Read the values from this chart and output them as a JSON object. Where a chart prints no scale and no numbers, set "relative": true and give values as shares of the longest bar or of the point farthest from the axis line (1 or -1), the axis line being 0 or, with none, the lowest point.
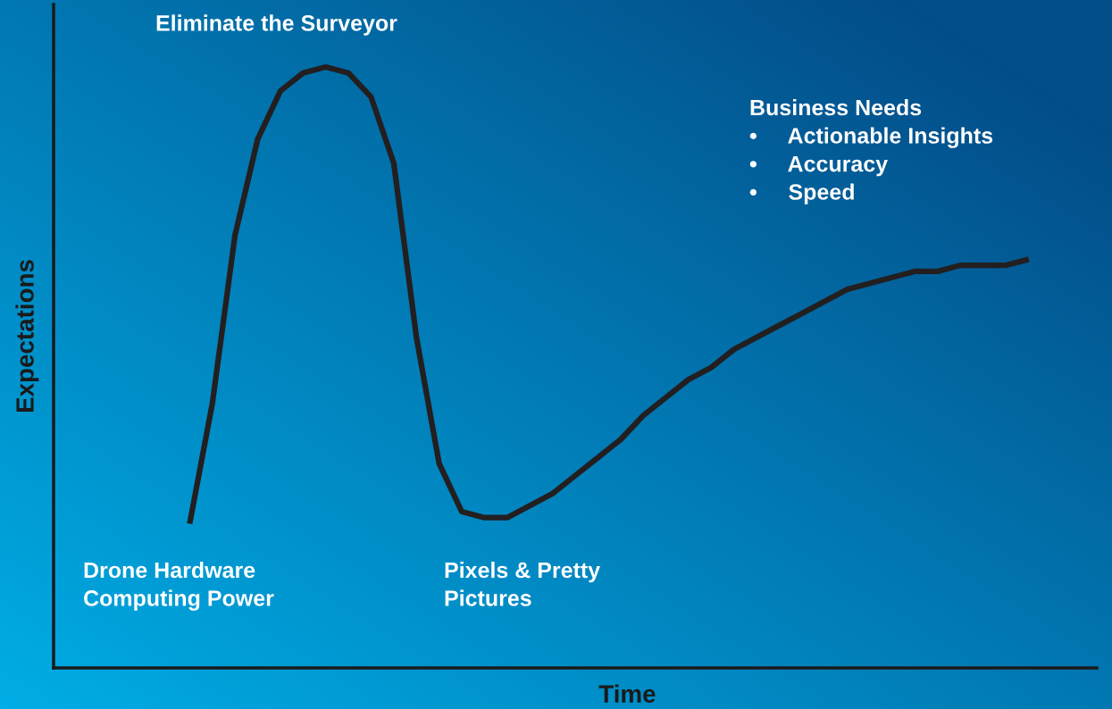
{
  "chart_data": {
    "type": "line",
    "relative": true,
    "xlabel": "Time",
    "ylabel": "Expectations",
    "categories": [
      null,
      null,
      null,
      null,
      null,
      null,
      null,
      null,
      null,
      null,
      null,
      null,
      null,
      null,
      null,
      null,
      null,
      null,
      null,
      null,
      null,
      null,
      null,
      null,
      null,
      null,
      null,
      null,
      null,
      null,
      null,
      null,
      null,
      null,
      null,
      null,
      null,
      null,
      null,
      null,
      null,
      null,
      null,
      null,
      null,
      null,
      null
    ],
    "series": [
      {
        "color": "#231f20",
        "values": [
          null,
          null,
          null,
          null,
          null,
          null,
          0.24,
          0.44,
          0.72,
          0.88,
          0.96,
          0.99,
          1.0,
          0.99,
          0.95,
          0.84,
          0.55,
          0.34,
          0.26,
          0.25,
          0.25,
          0.27,
          0.29,
          0.32,
          0.35,
          0.38,
          0.42,
          0.45,
          0.48,
          0.5,
          0.53,
          0.55,
          0.57,
          0.59,
          0.61,
          0.63,
          0.64,
          0.65,
          0.66,
          0.66,
          0.67,
          0.67,
          0.67,
          0.68,
          null,
          null,
          null
        ]
      }
    ],
    "annotations": [
      "Eliminate the Surveyor",
      "Drone Hardware\nComputing Power",
      "Pixels & Pretty\nPictures",
      "Business Needs\n•     Actionable Insights\n•     Accuracy\n•     Speed"
    ],
    "grid": false,
    "legend": false,
    "marker": "none",
    "line_style": "solid"
  }
}
